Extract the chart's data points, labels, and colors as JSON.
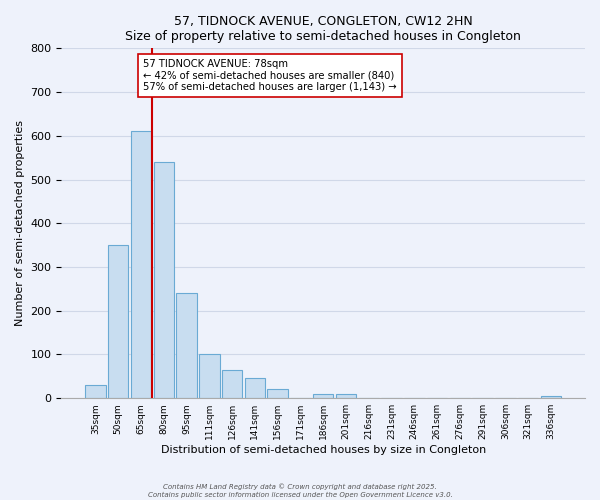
{
  "title": "57, TIDNOCK AVENUE, CONGLETON, CW12 2HN",
  "subtitle": "Size of property relative to semi-detached houses in Congleton",
  "xlabel": "Distribution of semi-detached houses by size in Congleton",
  "ylabel": "Number of semi-detached properties",
  "bar_labels": [
    "35sqm",
    "50sqm",
    "65sqm",
    "80sqm",
    "95sqm",
    "111sqm",
    "126sqm",
    "141sqm",
    "156sqm",
    "171sqm",
    "186sqm",
    "201sqm",
    "216sqm",
    "231sqm",
    "246sqm",
    "261sqm",
    "276sqm",
    "291sqm",
    "306sqm",
    "321sqm",
    "336sqm"
  ],
  "bar_values": [
    30,
    350,
    610,
    540,
    240,
    100,
    65,
    47,
    20,
    0,
    10,
    10,
    0,
    0,
    0,
    0,
    0,
    0,
    0,
    0,
    5
  ],
  "bar_color": "#c8ddf0",
  "bar_edge_color": "#6aaad4",
  "vline_color": "#cc0000",
  "vline_x_idx": 2,
  "vline_x_offset": 0.5,
  "annotation_text": "57 TIDNOCK AVENUE: 78sqm\n← 42% of semi-detached houses are smaller (840)\n57% of semi-detached houses are larger (1,143) →",
  "annotation_box_color": "white",
  "annotation_box_edge": "#cc0000",
  "ylim": [
    0,
    800
  ],
  "yticks": [
    0,
    100,
    200,
    300,
    400,
    500,
    600,
    700,
    800
  ],
  "footer1": "Contains HM Land Registry data © Crown copyright and database right 2025.",
  "footer2": "Contains public sector information licensed under the Open Government Licence v3.0.",
  "bg_color": "#eef2fb",
  "grid_color": "#d0d8e8"
}
